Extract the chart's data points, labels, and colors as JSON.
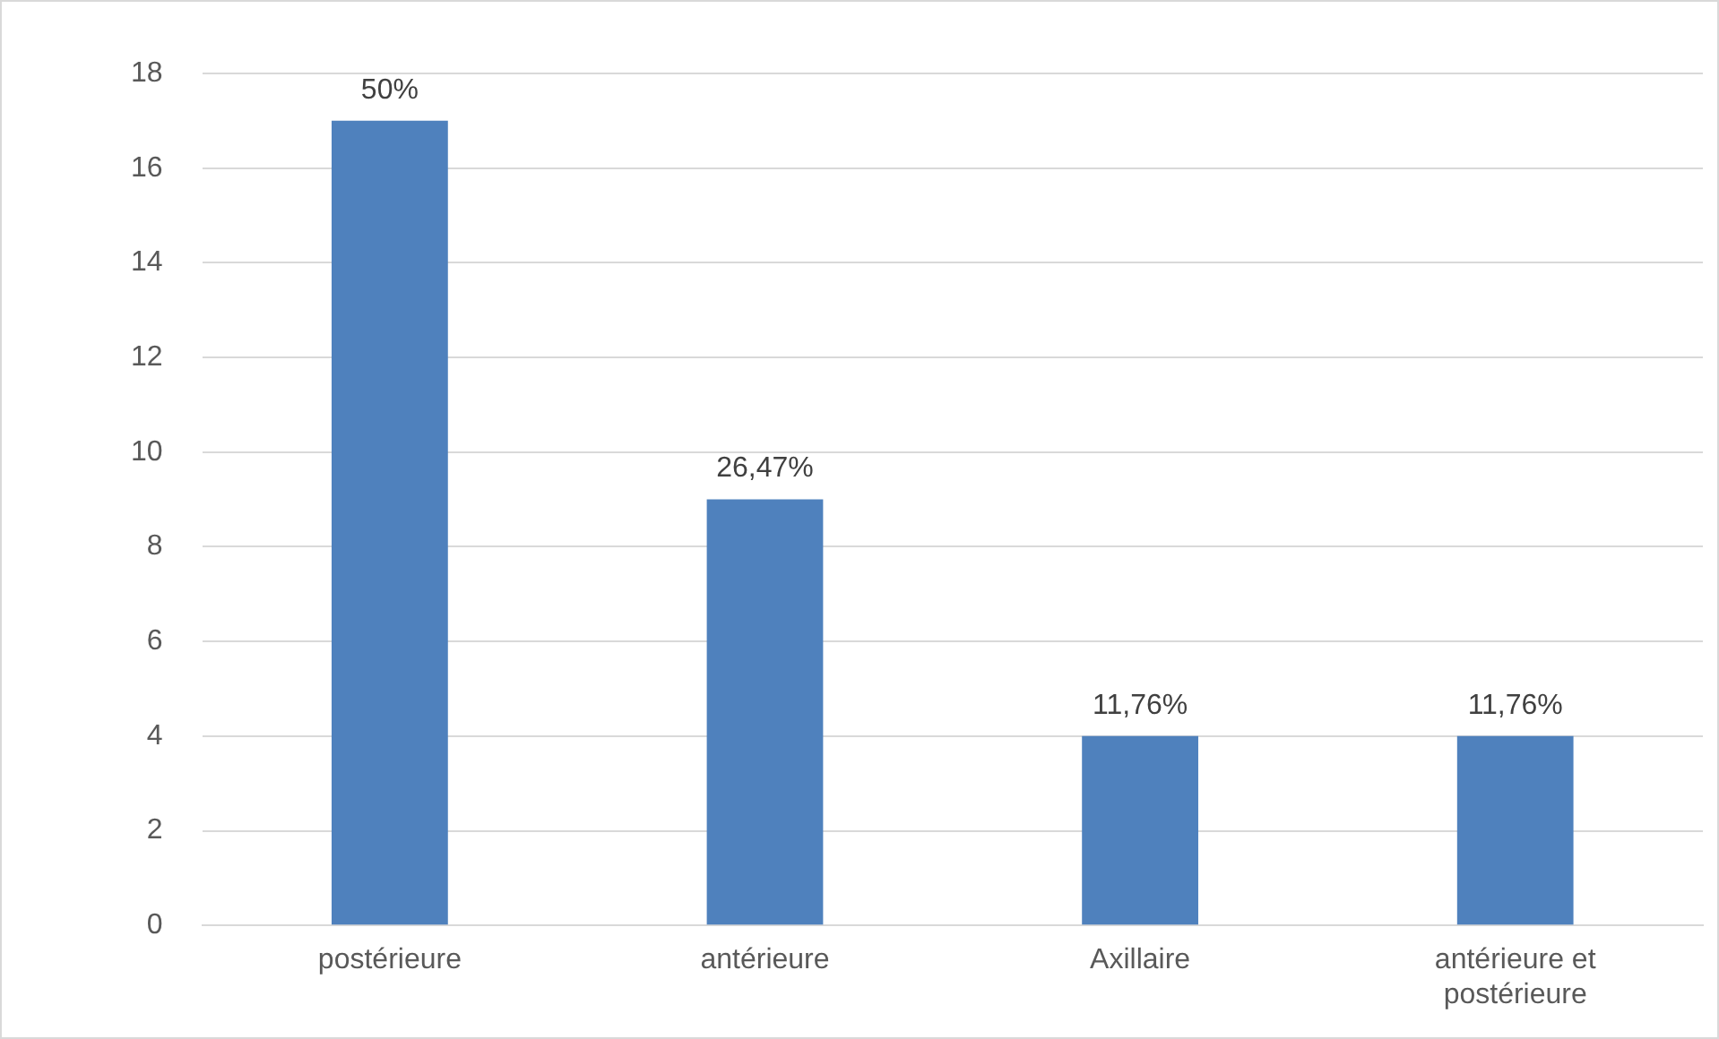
{
  "chart_data": {
    "type": "bar",
    "categories": [
      "postérieure",
      "antérieure",
      "Axillaire",
      "antérieure et postérieure"
    ],
    "values": [
      17,
      9,
      4,
      4
    ],
    "annotations": [
      {
        "text": "50%",
        "x": "postérieure",
        "y": 17
      },
      {
        "text": "26,47%",
        "x": "antérieure",
        "y": 9
      },
      {
        "text": "11,76%",
        "x": "Axillaire",
        "y": 4
      },
      {
        "text": "11,76%",
        "x": "antérieure et postérieure",
        "y": 4
      }
    ],
    "color": "#4f81bd",
    "ylim": [
      0,
      18
    ],
    "yticks": [
      0,
      2,
      4,
      6,
      8,
      10,
      12,
      14,
      16,
      18
    ],
    "grid": "y",
    "legend": false
  }
}
